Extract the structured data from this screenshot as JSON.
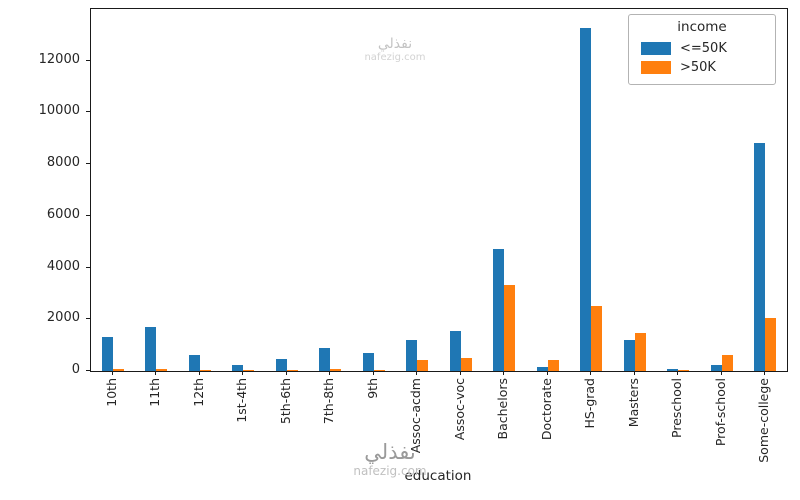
{
  "watermark": {
    "arabic": "نفذلي",
    "site": "nafezig.com"
  },
  "chart_data": {
    "type": "bar",
    "title": "",
    "xlabel": "education",
    "ylabel": "",
    "legend_title": "income",
    "legend_position": "upper right",
    "grid": false,
    "ylim": [
      0,
      14000
    ],
    "yticks": [
      0,
      2000,
      4000,
      6000,
      8000,
      10000,
      12000
    ],
    "categories": [
      "10th",
      "11th",
      "12th",
      "1st-4th",
      "5th-6th",
      "7th-8th",
      "9th",
      "Assoc-acdm",
      "Assoc-voc",
      "Bachelors",
      "Doctorate",
      "HS-grad",
      "Masters",
      "Preschool",
      "Prof-school",
      "Some-college"
    ],
    "series": [
      {
        "name": "<=50K",
        "color": "#1f77b4",
        "values": [
          1302,
          1720,
          609,
          239,
          482,
          893,
          716,
          1188,
          1539,
          4712,
          163,
          13274,
          1198,
          82,
          217,
          8815
        ]
      },
      {
        "name": ">50K",
        "color": "#ff7f0e",
        "values": [
          87,
          92,
          48,
          8,
          27,
          62,
          40,
          413,
          522,
          3313,
          431,
          2510,
          1459,
          1,
          617,
          2063
        ]
      }
    ]
  }
}
